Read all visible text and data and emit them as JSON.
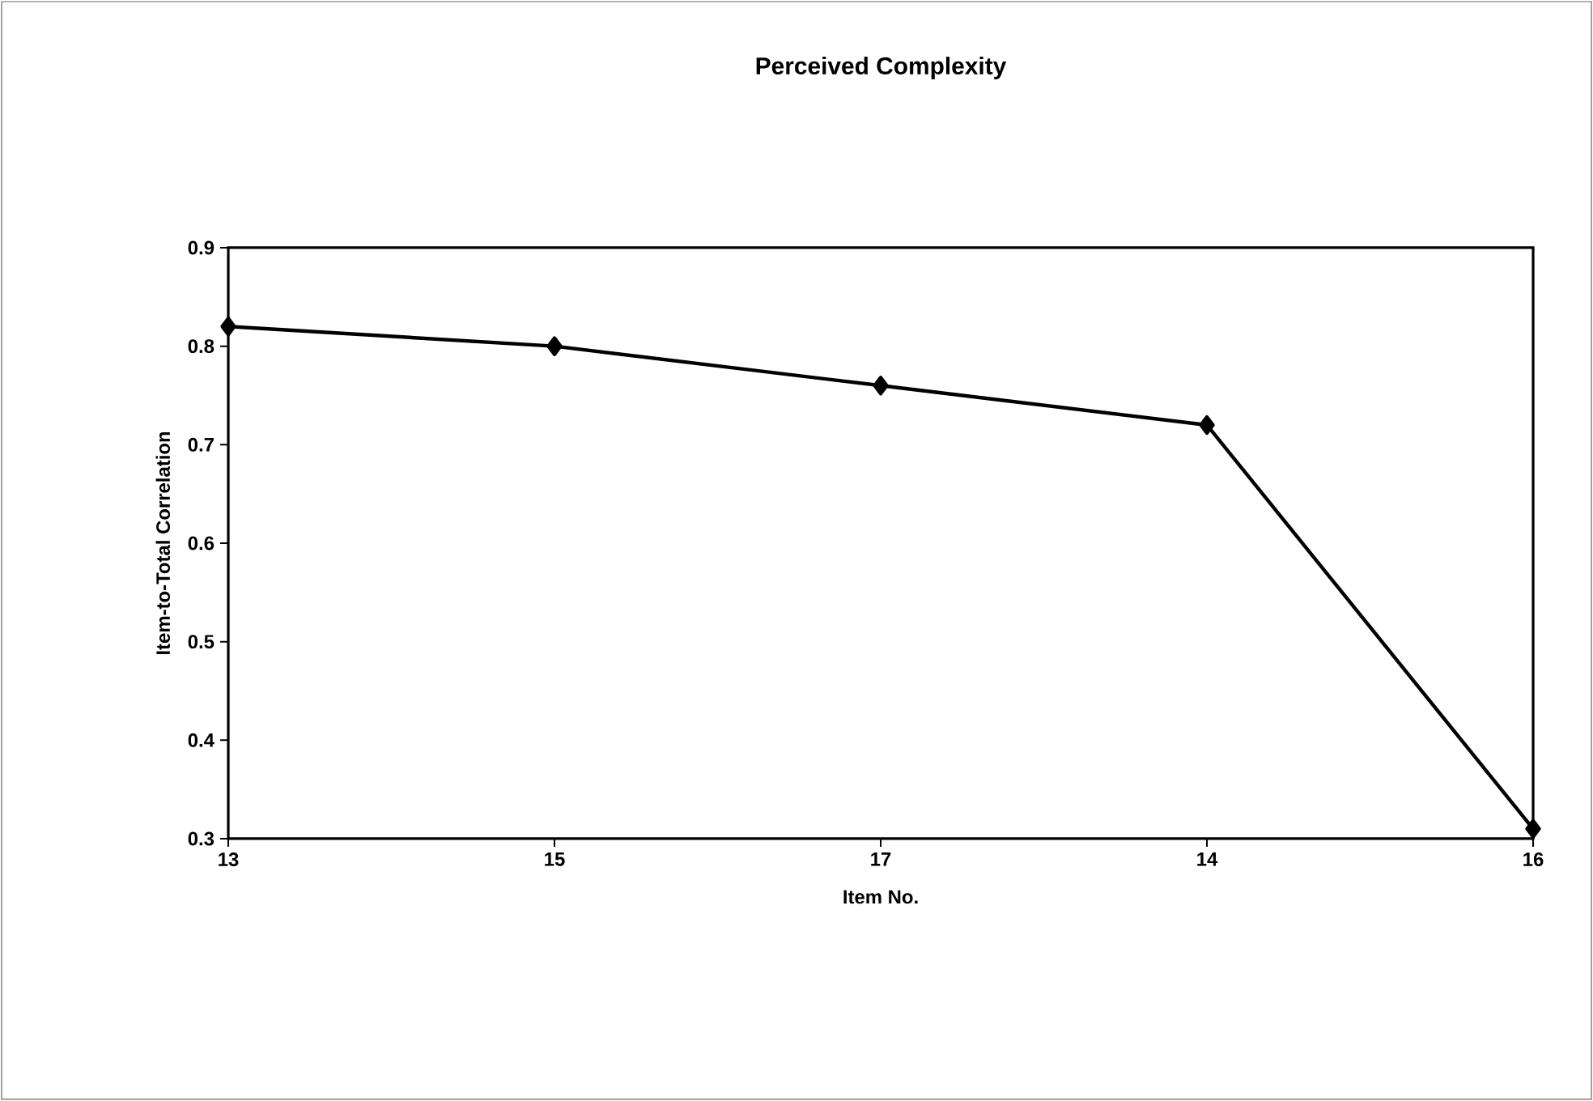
{
  "chart_data": {
    "type": "line",
    "title": "Perceived Complexity",
    "xlabel": "Item No.",
    "ylabel": "Item-to-Total Correlation",
    "categories": [
      "13",
      "15",
      "17",
      "14",
      "16"
    ],
    "series": [
      {
        "color": "#000000",
        "values": [
          0.82,
          0.8,
          0.76,
          0.72,
          0.31
        ]
      }
    ],
    "ylim": [
      0.3,
      0.9
    ],
    "yticks": [
      0.3,
      0.4,
      0.5,
      0.6,
      0.7,
      0.8,
      0.9
    ],
    "marker": "diamond",
    "line_style": "solid",
    "grid": false
  }
}
